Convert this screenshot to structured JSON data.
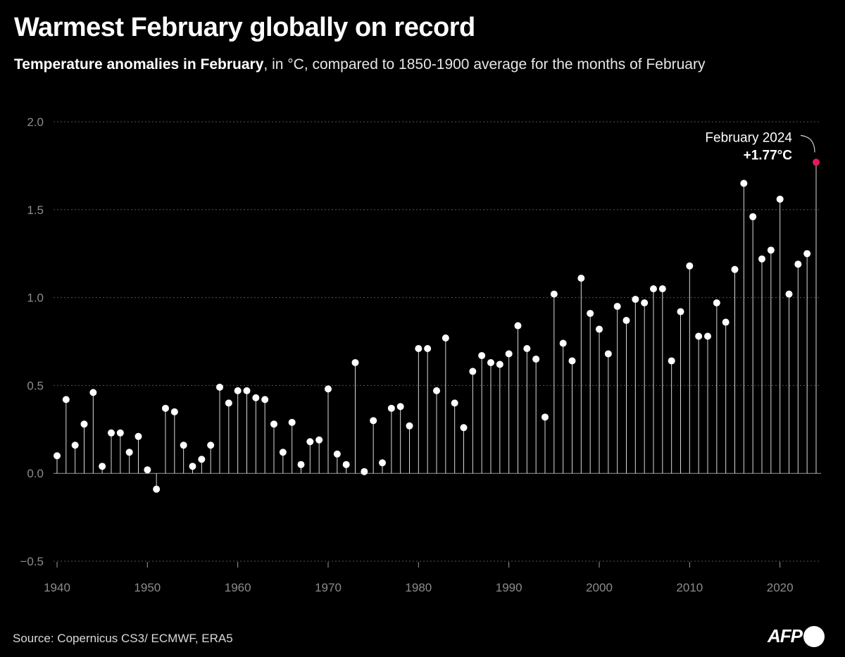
{
  "title": "Warmest February globally on record",
  "subtitle_bold": "Temperature anomalies in February",
  "subtitle_rest": ", in °C, compared to 1850-1900 average for the months of February",
  "source": "Source: Copernicus CS3/ ECMWF, ERA5",
  "logo_text": "AFP",
  "colors": {
    "background": "#000000",
    "point": "#ffffff",
    "highlight": "#e8175d",
    "grid": "#555555",
    "axis_text": "#8c8c8c"
  },
  "chart_data": {
    "type": "scatter",
    "style": "lollipop",
    "title": "Warmest February globally on record",
    "subtitle": "Temperature anomalies in February, in °C, compared to 1850-1900 average for the months of February",
    "xlabel": "",
    "ylabel": "",
    "xlim": [
      1940,
      2024
    ],
    "ylim": [
      -0.5,
      2.0
    ],
    "grid": true,
    "y_ticks": [
      -0.5,
      0.0,
      0.5,
      1.0,
      1.5,
      2.0
    ],
    "y_tick_labels": [
      "−0.5",
      "0.0",
      "0.5",
      "1.0",
      "1.5",
      "2.0"
    ],
    "x_ticks": [
      1940,
      1950,
      1960,
      1970,
      1980,
      1990,
      2000,
      2010,
      2020
    ],
    "x_tick_labels": [
      "1940",
      "1950",
      "1960",
      "1970",
      "1980",
      "1990",
      "2000",
      "2010",
      "2020"
    ],
    "x": [
      1940,
      1941,
      1942,
      1943,
      1944,
      1945,
      1946,
      1947,
      1948,
      1949,
      1950,
      1951,
      1952,
      1953,
      1954,
      1955,
      1956,
      1957,
      1958,
      1959,
      1960,
      1961,
      1962,
      1963,
      1964,
      1965,
      1966,
      1967,
      1968,
      1969,
      1970,
      1971,
      1972,
      1973,
      1974,
      1975,
      1976,
      1977,
      1978,
      1979,
      1980,
      1981,
      1982,
      1983,
      1984,
      1985,
      1986,
      1987,
      1988,
      1989,
      1990,
      1991,
      1992,
      1993,
      1994,
      1995,
      1996,
      1997,
      1998,
      1999,
      2000,
      2001,
      2002,
      2003,
      2004,
      2005,
      2006,
      2007,
      2008,
      2009,
      2010,
      2011,
      2012,
      2013,
      2014,
      2015,
      2016,
      2017,
      2018,
      2019,
      2020,
      2021,
      2022,
      2023,
      2024
    ],
    "y": [
      0.1,
      0.42,
      0.16,
      0.28,
      0.46,
      0.04,
      0.23,
      0.23,
      0.12,
      0.21,
      0.02,
      -0.09,
      0.37,
      0.35,
      0.16,
      0.04,
      0.08,
      0.16,
      0.49,
      0.4,
      0.47,
      0.47,
      0.43,
      0.42,
      0.28,
      0.12,
      0.29,
      0.05,
      0.18,
      0.19,
      0.48,
      0.11,
      0.05,
      0.63,
      0.01,
      0.3,
      0.06,
      0.37,
      0.38,
      0.27,
      0.71,
      0.71,
      0.47,
      0.77,
      0.4,
      0.26,
      0.58,
      0.67,
      0.63,
      0.62,
      0.68,
      0.84,
      0.71,
      0.65,
      0.32,
      1.02,
      0.74,
      0.64,
      1.11,
      0.91,
      0.82,
      0.68,
      0.95,
      0.87,
      0.99,
      0.97,
      1.05,
      1.05,
      0.64,
      0.92,
      1.18,
      0.78,
      0.78,
      0.97,
      0.86,
      1.16,
      1.65,
      1.46,
      1.22,
      1.27,
      1.56,
      1.02,
      1.19,
      1.25,
      1.77
    ],
    "annotations": [
      {
        "x": 2024,
        "y": 1.77,
        "label": "February 2024",
        "value_label": "+1.77°C"
      }
    ]
  }
}
